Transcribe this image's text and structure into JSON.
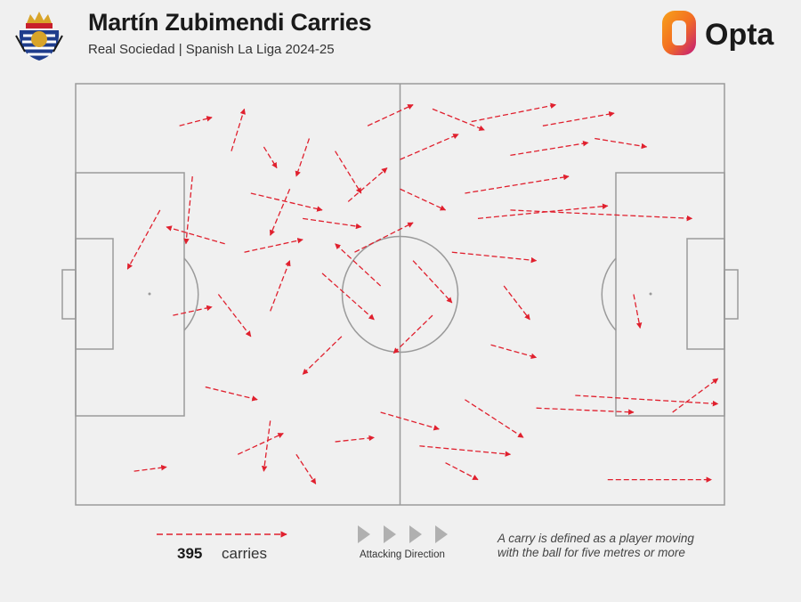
{
  "header": {
    "title": "Martín Zubimendi Carries",
    "subtitle": "Real Sociedad | Spanish La Liga 2024-25",
    "brand": "Opta"
  },
  "colors": {
    "carry": "#e0202e",
    "pitch_line": "#9a9a9a",
    "background": "#f0f0f0",
    "brand_orange": "#f37021",
    "brand_magenta": "#c2187b",
    "crest_blue": "#1f3d8c",
    "crest_gold": "#d8a429"
  },
  "legend": {
    "count": "395",
    "count_label": "carries",
    "direction_label": "Attacking Direction",
    "definition": "A carry is defined as a player moving with the ball for five metres or more"
  },
  "chart_data": {
    "type": "scatter",
    "description_units": "pitch coordinates 0-100 (x: own goal to opponent goal, y: bottom to top touchline)",
    "xlim": [
      0,
      100
    ],
    "ylim": [
      0,
      100
    ],
    "attacking_direction": "left-to-right",
    "total_carries": 395,
    "carries": [
      {
        "x1": 16,
        "y1": 90,
        "x2": 21,
        "y2": 92
      },
      {
        "x1": 24,
        "y1": 84,
        "x2": 26,
        "y2": 94
      },
      {
        "x1": 29,
        "y1": 85,
        "x2": 31,
        "y2": 80
      },
      {
        "x1": 36,
        "y1": 87,
        "x2": 34,
        "y2": 78
      },
      {
        "x1": 33,
        "y1": 75,
        "x2": 30,
        "y2": 64
      },
      {
        "x1": 40,
        "y1": 84,
        "x2": 44,
        "y2": 74
      },
      {
        "x1": 45,
        "y1": 90,
        "x2": 52,
        "y2": 95
      },
      {
        "x1": 50,
        "y1": 82,
        "x2": 59,
        "y2": 88
      },
      {
        "x1": 55,
        "y1": 94,
        "x2": 63,
        "y2": 89
      },
      {
        "x1": 61,
        "y1": 91,
        "x2": 74,
        "y2": 95
      },
      {
        "x1": 67,
        "y1": 83,
        "x2": 79,
        "y2": 86
      },
      {
        "x1": 72,
        "y1": 90,
        "x2": 83,
        "y2": 93
      },
      {
        "x1": 80,
        "y1": 87,
        "x2": 88,
        "y2": 85
      },
      {
        "x1": 60,
        "y1": 74,
        "x2": 76,
        "y2": 78
      },
      {
        "x1": 62,
        "y1": 68,
        "x2": 82,
        "y2": 71
      },
      {
        "x1": 67,
        "y1": 70,
        "x2": 95,
        "y2": 68
      },
      {
        "x1": 43,
        "y1": 60,
        "x2": 52,
        "y2": 67
      },
      {
        "x1": 47,
        "y1": 52,
        "x2": 40,
        "y2": 62
      },
      {
        "x1": 38,
        "y1": 55,
        "x2": 46,
        "y2": 44
      },
      {
        "x1": 52,
        "y1": 58,
        "x2": 58,
        "y2": 48
      },
      {
        "x1": 55,
        "y1": 45,
        "x2": 49,
        "y2": 36
      },
      {
        "x1": 41,
        "y1": 40,
        "x2": 35,
        "y2": 31
      },
      {
        "x1": 30,
        "y1": 46,
        "x2": 33,
        "y2": 58
      },
      {
        "x1": 26,
        "y1": 60,
        "x2": 35,
        "y2": 63
      },
      {
        "x1": 22,
        "y1": 50,
        "x2": 27,
        "y2": 40
      },
      {
        "x1": 13,
        "y1": 70,
        "x2": 8,
        "y2": 56
      },
      {
        "x1": 18,
        "y1": 78,
        "x2": 17,
        "y2": 62
      },
      {
        "x1": 15,
        "y1": 45,
        "x2": 21,
        "y2": 47
      },
      {
        "x1": 20,
        "y1": 28,
        "x2": 28,
        "y2": 25
      },
      {
        "x1": 25,
        "y1": 12,
        "x2": 32,
        "y2": 17
      },
      {
        "x1": 9,
        "y1": 8,
        "x2": 14,
        "y2": 9
      },
      {
        "x1": 30,
        "y1": 20,
        "x2": 29,
        "y2": 8
      },
      {
        "x1": 34,
        "y1": 12,
        "x2": 37,
        "y2": 5
      },
      {
        "x1": 40,
        "y1": 15,
        "x2": 46,
        "y2": 16
      },
      {
        "x1": 47,
        "y1": 22,
        "x2": 56,
        "y2": 18
      },
      {
        "x1": 53,
        "y1": 14,
        "x2": 67,
        "y2": 12
      },
      {
        "x1": 60,
        "y1": 25,
        "x2": 69,
        "y2": 16
      },
      {
        "x1": 57,
        "y1": 10,
        "x2": 62,
        "y2": 6
      },
      {
        "x1": 71,
        "y1": 23,
        "x2": 86,
        "y2": 22
      },
      {
        "x1": 77,
        "y1": 26,
        "x2": 99,
        "y2": 24
      },
      {
        "x1": 92,
        "y1": 22,
        "x2": 99,
        "y2": 30
      },
      {
        "x1": 82,
        "y1": 6,
        "x2": 98,
        "y2": 6
      },
      {
        "x1": 64,
        "y1": 38,
        "x2": 71,
        "y2": 35
      },
      {
        "x1": 66,
        "y1": 52,
        "x2": 70,
        "y2": 44
      },
      {
        "x1": 58,
        "y1": 60,
        "x2": 71,
        "y2": 58
      },
      {
        "x1": 86,
        "y1": 50,
        "x2": 87,
        "y2": 42
      },
      {
        "x1": 50,
        "y1": 75,
        "x2": 57,
        "y2": 70
      },
      {
        "x1": 42,
        "y1": 72,
        "x2": 48,
        "y2": 80
      },
      {
        "x1": 35,
        "y1": 68,
        "x2": 44,
        "y2": 66
      },
      {
        "x1": 27,
        "y1": 74,
        "x2": 38,
        "y2": 70
      },
      {
        "x1": 23,
        "y1": 62,
        "x2": 14,
        "y2": 66
      }
    ]
  }
}
